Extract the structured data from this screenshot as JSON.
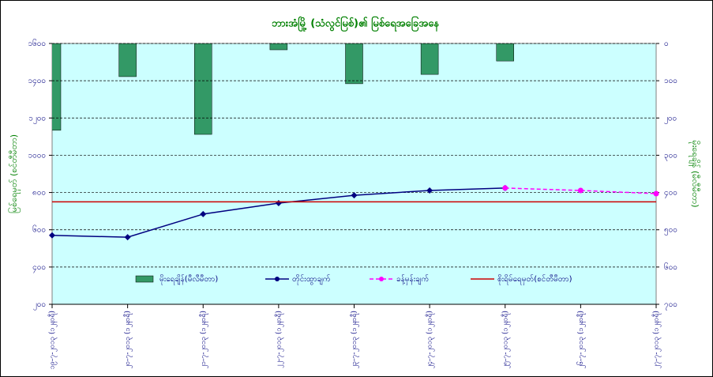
{
  "chart_data": {
    "type": "combo",
    "title": "ဘားအံမြို့ (သံလွင်မြစ်)၏ မြစ်ရေအခြေအနေ",
    "ylabel": "မြစ်ရေမှတ် (စင်တီမီတာ)",
    "y2label": "မိုးရေချိန် (မီလီမီတာ)",
    "categories": [
      "၁၉-၇-၂၀၁၃ (၁၂နာရီ)",
      "၂၀-၇-၂၀၁၃ (၁၂နာရီ)",
      "၂၁-၇-၂၀၁၃ (၁၂နာရီ)",
      "၂၂-၇-၂၀၁၃ (၁၂နာရီ)",
      "၂၃-၇-၂၀၁၃ (၁၂နာရီ)",
      "၂၄-၇-၂၀၁၃ (၁၂နာရီ)",
      "၂၅-၇-၂၀၁၃ (၁၂နာရီ)",
      "၂၆-၇-၂၀၁၃ (၁၂နာရီ)",
      "၂၇-၇-၂၀၁၃ (၁၂နာရီ)"
    ],
    "series": [
      {
        "name": "မိုးရေချိန်(မီလီမီတာ)",
        "kind": "bar",
        "axis": "y2",
        "color": "#339966",
        "values": [
          233,
          89,
          244,
          17,
          108,
          83,
          47,
          null,
          null
        ]
      },
      {
        "name": "တိုင်းထွာချက်",
        "kind": "line",
        "color": "#000080",
        "values": [
          570,
          560,
          684,
          743,
          785,
          811,
          824,
          null,
          null
        ]
      },
      {
        "name": "ခန့်မှန်းချက်",
        "kind": "line",
        "dashed": true,
        "color": "#ff00ff",
        "values": [
          null,
          null,
          null,
          null,
          null,
          null,
          824,
          811,
          794
        ]
      },
      {
        "name": "စိုးရိမ်ရေမှတ်(စင်တီမီတာ)",
        "kind": "hline",
        "color": "#cc0000",
        "value": 750
      }
    ],
    "ylim": [
      200,
      1600
    ],
    "yticks": [
      {
        "value": 1600,
        "label": "၁၆၀၀"
      },
      {
        "value": 1400,
        "label": "၁၄၀၀"
      },
      {
        "value": 1200,
        "label": "၁၂၀၀"
      },
      {
        "value": 1000,
        "label": "၁၀၀၀"
      },
      {
        "value": 800,
        "label": "၈၀၀"
      },
      {
        "value": 600,
        "label": "၆၀၀"
      },
      {
        "value": 400,
        "label": "၄၀၀"
      },
      {
        "value": 200,
        "label": "၂၀၀"
      }
    ],
    "y2lim": [
      0,
      700
    ],
    "y2ticks": [
      {
        "value": 0,
        "label": "၀"
      },
      {
        "value": 100,
        "label": "၁၀၀"
      },
      {
        "value": 200,
        "label": "၂၀၀"
      },
      {
        "value": 300,
        "label": "၃၀၀"
      },
      {
        "value": 400,
        "label": "၄၀၀"
      },
      {
        "value": 500,
        "label": "၅၀၀"
      },
      {
        "value": 600,
        "label": "၆၀၀"
      },
      {
        "value": 700,
        "label": "၇၀၀"
      }
    ],
    "grid": true
  }
}
